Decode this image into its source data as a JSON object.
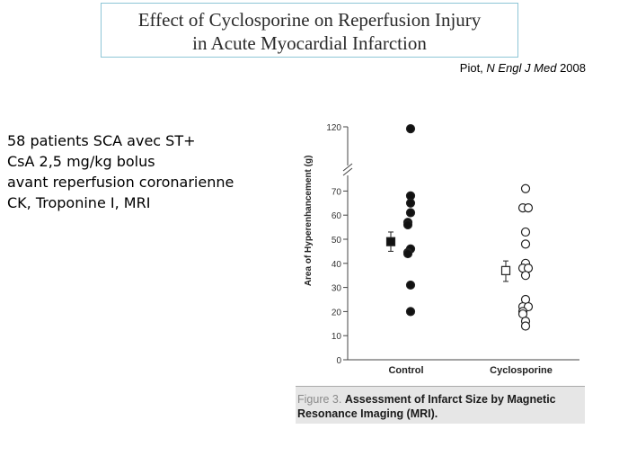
{
  "slide": {
    "title_line1": "Effect of Cyclosporine on Reperfusion Injury",
    "title_line2": "in Acute Myocardial Infarction",
    "citation_author": "Piot, ",
    "citation_journal": "N Engl J Med",
    "citation_year": " 2008",
    "bullets": [
      "58 patients SCA avec ST+",
      "CsA 2,5 mg/kg bolus",
      "avant reperfusion coronarienne",
      "CK, Troponine I, MRI"
    ]
  },
  "caption": {
    "figure_label": "Figure 3.",
    "text": "Assessment of Infarct Size by Magnetic Resonance Imaging (MRI)."
  },
  "chart_data": {
    "type": "scatter",
    "ylabel": "Area of Hyperenhancement (g)",
    "xlabel": "",
    "categories": [
      "Control",
      "Cyclosporine"
    ],
    "ylim": [
      0,
      120
    ],
    "axis_break": [
      75,
      115
    ],
    "yticks": [
      0,
      10,
      20,
      30,
      40,
      50,
      60,
      70,
      120
    ],
    "grid": false,
    "series": [
      {
        "name": "Control",
        "marker": "filled-circle",
        "values": [
          113,
          68,
          65,
          61,
          57,
          56,
          46,
          44.5,
          44,
          31,
          20
        ],
        "mean": 49,
        "error": [
          45,
          53
        ],
        "mean_marker": "filled-square"
      },
      {
        "name": "Cyclosporine",
        "marker": "open-circle",
        "values": [
          71,
          63,
          63,
          53,
          48,
          40,
          38,
          38,
          35,
          25,
          22,
          22,
          20,
          19,
          16,
          14
        ],
        "mean": 37,
        "error": [
          32.5,
          41
        ],
        "mean_marker": "open-square"
      }
    ]
  }
}
